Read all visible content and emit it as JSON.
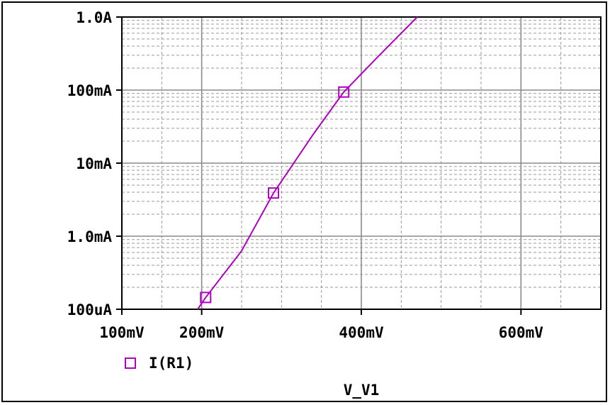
{
  "chart_data": {
    "type": "line",
    "xlabel": "V_V1",
    "x_scale": "linear",
    "y_scale": "log",
    "xlim": [
      0.1,
      0.7
    ],
    "ylim": [
      0.0001,
      1.0
    ],
    "x_ticks": [
      {
        "value": 0.1,
        "label": "100mV"
      },
      {
        "value": 0.2,
        "label": "200mV"
      },
      {
        "value": 0.4,
        "label": "400mV"
      },
      {
        "value": 0.6,
        "label": "600mV"
      }
    ],
    "y_ticks": [
      {
        "value": 1.0,
        "label": "1.0A"
      },
      {
        "value": 0.1,
        "label": "100mA"
      },
      {
        "value": 0.01,
        "label": "10mA"
      },
      {
        "value": 0.001,
        "label": "1.0mA"
      },
      {
        "value": 0.0001,
        "label": "100uA"
      }
    ],
    "grid": true,
    "legend_position": "bottom-left",
    "series": [
      {
        "name": "I(R1)",
        "color": "#b000c0",
        "marker": "square",
        "x_unit": "V",
        "y_unit": "A",
        "points": [
          [
            0.195,
            0.0001
          ],
          [
            0.205,
            0.000145
          ],
          [
            0.25,
            0.00063
          ],
          [
            0.29,
            0.0039
          ],
          [
            0.34,
            0.025
          ],
          [
            0.378,
            0.094
          ],
          [
            0.42,
            0.28
          ],
          [
            0.47,
            1.0
          ]
        ],
        "markers": [
          [
            0.205,
            0.000145
          ],
          [
            0.29,
            0.0039
          ],
          [
            0.378,
            0.094
          ]
        ]
      }
    ]
  }
}
